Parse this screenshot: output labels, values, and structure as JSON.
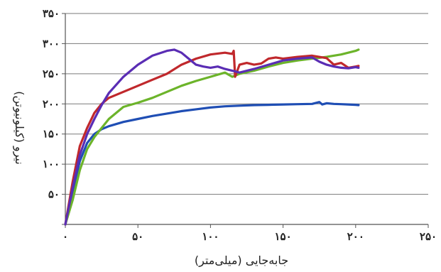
{
  "chart_data": {
    "type": "line",
    "title": "",
    "xlabel": "جابه‌جایی (میلی‌متر)",
    "ylabel": "نیرو (کیلونیوتن)",
    "xlim": [
      0,
      250
    ],
    "ylim": [
      0,
      350
    ],
    "x_ticks": [
      0,
      50,
      100,
      150,
      200,
      250
    ],
    "x_tick_labels": [
      "۰",
      "۵۰",
      "۱۰۰",
      "۱۵۰",
      "۲۰۰",
      "۲۵۰"
    ],
    "y_ticks": [
      0,
      50,
      100,
      150,
      200,
      250,
      300,
      350
    ],
    "y_tick_labels": [
      "",
      "۵۰",
      "۱۰۰",
      "۱۵۰",
      "۲۰۰",
      "۲۵۰",
      "۳۰۰",
      "۳۵۰"
    ],
    "grid": {
      "horizontal": true,
      "vertical": false
    },
    "legend": null,
    "series": [
      {
        "color": "#1f4eb4",
        "points": [
          [
            0,
            0
          ],
          [
            5,
            55
          ],
          [
            10,
            105
          ],
          [
            15,
            135
          ],
          [
            20,
            150
          ],
          [
            25,
            158
          ],
          [
            30,
            163
          ],
          [
            40,
            170
          ],
          [
            50,
            175
          ],
          [
            60,
            180
          ],
          [
            70,
            184
          ],
          [
            80,
            188
          ],
          [
            90,
            191
          ],
          [
            100,
            194
          ],
          [
            110,
            196
          ],
          [
            120,
            197
          ],
          [
            130,
            198
          ],
          [
            140,
            198.5
          ],
          [
            150,
            199
          ],
          [
            160,
            199.5
          ],
          [
            170,
            200
          ],
          [
            175,
            203
          ],
          [
            177,
            199
          ],
          [
            180,
            201
          ],
          [
            185,
            200
          ],
          [
            190,
            199.5
          ],
          [
            195,
            199
          ],
          [
            200,
            198.5
          ],
          [
            202,
            198
          ]
        ]
      },
      {
        "color": "#6cb42a",
        "points": [
          [
            0,
            0
          ],
          [
            5,
            40
          ],
          [
            10,
            90
          ],
          [
            15,
            125
          ],
          [
            20,
            145
          ],
          [
            25,
            160
          ],
          [
            30,
            175
          ],
          [
            40,
            195
          ],
          [
            50,
            202
          ],
          [
            60,
            210
          ],
          [
            70,
            220
          ],
          [
            80,
            230
          ],
          [
            90,
            238
          ],
          [
            100,
            245
          ],
          [
            110,
            252
          ],
          [
            115,
            245
          ],
          [
            120,
            250
          ],
          [
            130,
            255
          ],
          [
            140,
            262
          ],
          [
            150,
            268
          ],
          [
            160,
            272
          ],
          [
            170,
            275
          ],
          [
            180,
            278
          ],
          [
            190,
            282
          ],
          [
            200,
            288
          ],
          [
            202,
            290
          ]
        ]
      },
      {
        "color": "#c0282c",
        "points": [
          [
            0,
            0
          ],
          [
            5,
            70
          ],
          [
            10,
            130
          ],
          [
            15,
            160
          ],
          [
            20,
            185
          ],
          [
            25,
            200
          ],
          [
            30,
            210
          ],
          [
            40,
            220
          ],
          [
            50,
            230
          ],
          [
            60,
            240
          ],
          [
            70,
            250
          ],
          [
            80,
            265
          ],
          [
            90,
            275
          ],
          [
            100,
            282
          ],
          [
            110,
            285
          ],
          [
            115,
            283
          ],
          [
            116,
            288
          ],
          [
            117,
            245
          ],
          [
            120,
            265
          ],
          [
            125,
            268
          ],
          [
            130,
            265
          ],
          [
            135,
            267
          ],
          [
            140,
            275
          ],
          [
            145,
            277
          ],
          [
            150,
            275
          ],
          [
            160,
            278
          ],
          [
            170,
            280
          ],
          [
            180,
            276
          ],
          [
            185,
            265
          ],
          [
            190,
            268
          ],
          [
            195,
            260
          ],
          [
            200,
            262
          ],
          [
            202,
            263
          ]
        ]
      },
      {
        "color": "#5a2db4",
        "points": [
          [
            0,
            0
          ],
          [
            5,
            60
          ],
          [
            10,
            115
          ],
          [
            15,
            150
          ],
          [
            20,
            175
          ],
          [
            25,
            198
          ],
          [
            30,
            218
          ],
          [
            40,
            245
          ],
          [
            50,
            265
          ],
          [
            60,
            280
          ],
          [
            70,
            288
          ],
          [
            75,
            290
          ],
          [
            80,
            285
          ],
          [
            85,
            275
          ],
          [
            90,
            265
          ],
          [
            95,
            262
          ],
          [
            100,
            260
          ],
          [
            105,
            262
          ],
          [
            110,
            258
          ],
          [
            115,
            255
          ],
          [
            120,
            252
          ],
          [
            130,
            258
          ],
          [
            140,
            265
          ],
          [
            150,
            272
          ],
          [
            160,
            275
          ],
          [
            170,
            277
          ],
          [
            175,
            270
          ],
          [
            180,
            265
          ],
          [
            185,
            262
          ],
          [
            190,
            260
          ],
          [
            195,
            259
          ],
          [
            200,
            261
          ],
          [
            202,
            260
          ]
        ]
      }
    ]
  }
}
